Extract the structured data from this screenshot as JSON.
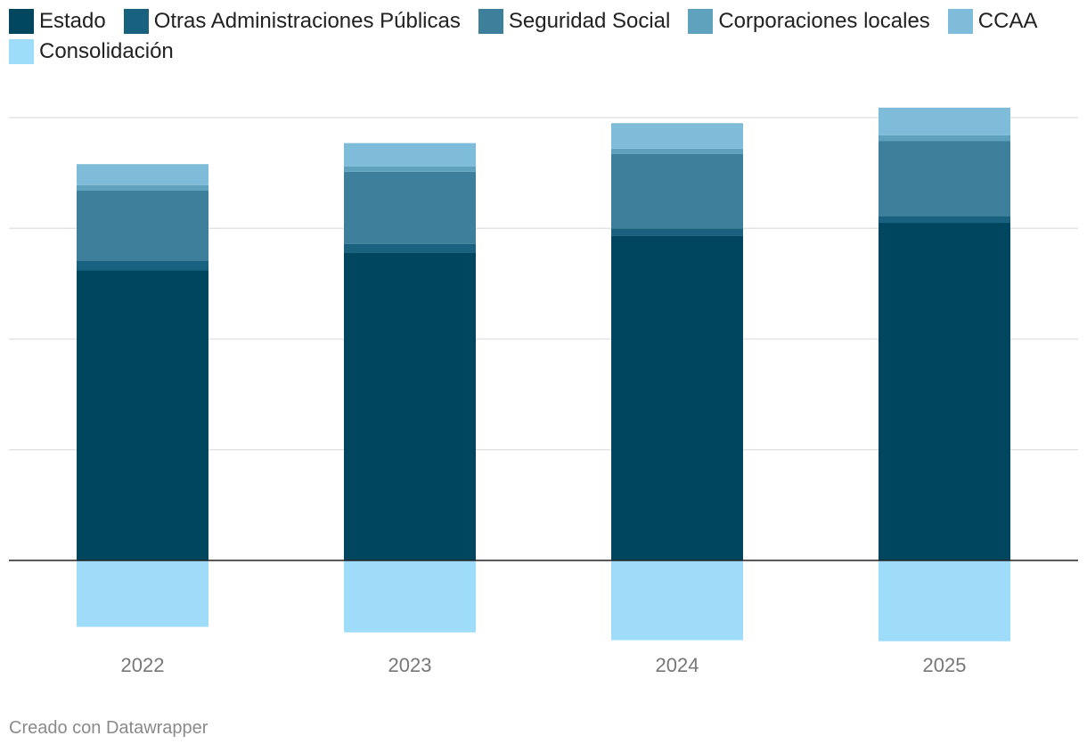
{
  "chart_data": {
    "type": "bar",
    "stacked": true,
    "categories": [
      "2022",
      "2023",
      "2024",
      "2025"
    ],
    "ylim": [
      -91,
      500
    ],
    "gridlines": [
      100,
      200,
      300,
      400
    ],
    "grid": true,
    "legend_position": "top-left",
    "series": [
      {
        "name": "Estado",
        "color": "#00465f",
        "values": [
          262,
          278,
          293,
          305
        ]
      },
      {
        "name": "Otras Administraciones Públicas",
        "color": "#18627f",
        "values": [
          9,
          8,
          7,
          6
        ]
      },
      {
        "name": "Seguridad Social",
        "color": "#3e7f9b",
        "values": [
          63,
          65,
          67,
          68
        ]
      },
      {
        "name": "Corporaciones locales",
        "color": "#5fa2be",
        "values": [
          5,
          5,
          5,
          5
        ]
      },
      {
        "name": "CCAA",
        "color": "#7ebcd9",
        "values": [
          19,
          21,
          23,
          25
        ]
      },
      {
        "name": "Consolidación",
        "color": "#9fdcfa",
        "values": [
          -60,
          -65,
          -72,
          -73
        ]
      }
    ]
  },
  "footer": {
    "credit": "Creado con Datawrapper"
  }
}
